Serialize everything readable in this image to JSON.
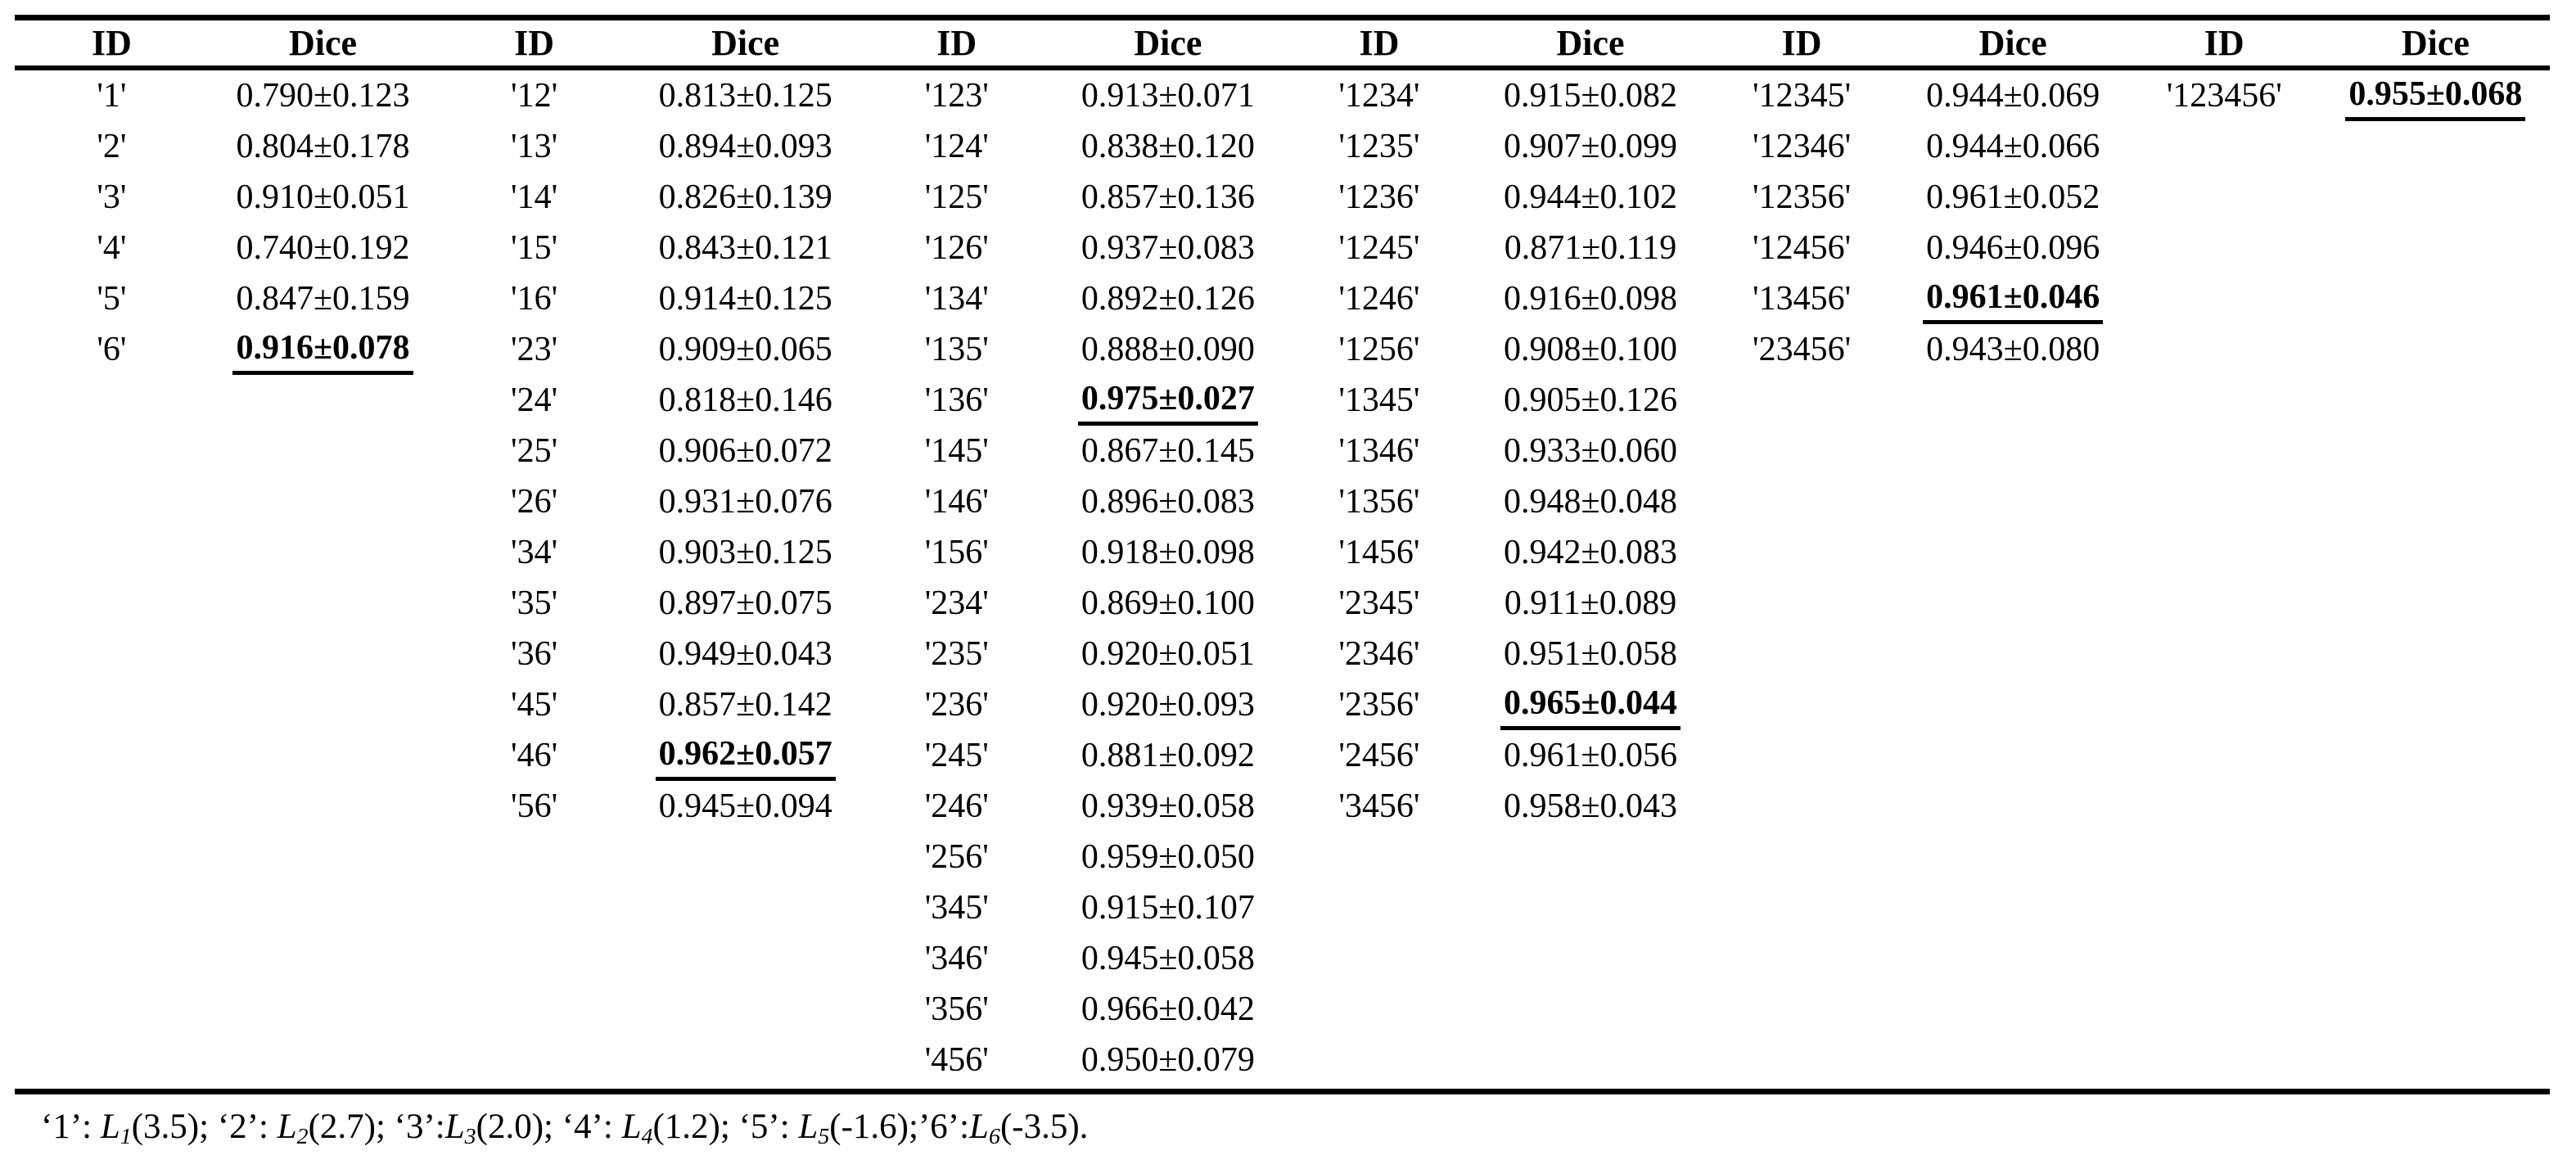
{
  "table": {
    "header": {
      "id_label": "ID",
      "dice_label": "Dice"
    },
    "column_groups": [
      {
        "rows": [
          {
            "id": "'1'",
            "dice": "0.790±0.123",
            "best": false
          },
          {
            "id": "'2'",
            "dice": "0.804±0.178",
            "best": false
          },
          {
            "id": "'3'",
            "dice": "0.910±0.051",
            "best": false
          },
          {
            "id": "'4'",
            "dice": "0.740±0.192",
            "best": false
          },
          {
            "id": "'5'",
            "dice": "0.847±0.159",
            "best": false
          },
          {
            "id": "'6'",
            "dice": "0.916±0.078",
            "best": true
          }
        ]
      },
      {
        "rows": [
          {
            "id": "'12'",
            "dice": "0.813±0.125",
            "best": false
          },
          {
            "id": "'13'",
            "dice": "0.894±0.093",
            "best": false
          },
          {
            "id": "'14'",
            "dice": "0.826±0.139",
            "best": false
          },
          {
            "id": "'15'",
            "dice": "0.843±0.121",
            "best": false
          },
          {
            "id": "'16'",
            "dice": "0.914±0.125",
            "best": false
          },
          {
            "id": "'23'",
            "dice": "0.909±0.065",
            "best": false
          },
          {
            "id": "'24'",
            "dice": "0.818±0.146",
            "best": false
          },
          {
            "id": "'25'",
            "dice": "0.906±0.072",
            "best": false
          },
          {
            "id": "'26'",
            "dice": "0.931±0.076",
            "best": false
          },
          {
            "id": "'34'",
            "dice": "0.903±0.125",
            "best": false
          },
          {
            "id": "'35'",
            "dice": "0.897±0.075",
            "best": false
          },
          {
            "id": "'36'",
            "dice": "0.949±0.043",
            "best": false
          },
          {
            "id": "'45'",
            "dice": "0.857±0.142",
            "best": false
          },
          {
            "id": "'46'",
            "dice": "0.962±0.057",
            "best": true
          },
          {
            "id": "'56'",
            "dice": "0.945±0.094",
            "best": false
          }
        ]
      },
      {
        "rows": [
          {
            "id": "'123'",
            "dice": "0.913±0.071",
            "best": false
          },
          {
            "id": "'124'",
            "dice": "0.838±0.120",
            "best": false
          },
          {
            "id": "'125'",
            "dice": "0.857±0.136",
            "best": false
          },
          {
            "id": "'126'",
            "dice": "0.937±0.083",
            "best": false
          },
          {
            "id": "'134'",
            "dice": "0.892±0.126",
            "best": false
          },
          {
            "id": "'135'",
            "dice": "0.888±0.090",
            "best": false
          },
          {
            "id": "'136'",
            "dice": "0.975±0.027",
            "best": true
          },
          {
            "id": "'145'",
            "dice": "0.867±0.145",
            "best": false
          },
          {
            "id": "'146'",
            "dice": "0.896±0.083",
            "best": false
          },
          {
            "id": "'156'",
            "dice": "0.918±0.098",
            "best": false
          },
          {
            "id": "'234'",
            "dice": "0.869±0.100",
            "best": false
          },
          {
            "id": "'235'",
            "dice": "0.920±0.051",
            "best": false
          },
          {
            "id": "'236'",
            "dice": "0.920±0.093",
            "best": false
          },
          {
            "id": "'245'",
            "dice": "0.881±0.092",
            "best": false
          },
          {
            "id": "'246'",
            "dice": "0.939±0.058",
            "best": false
          },
          {
            "id": "'256'",
            "dice": "0.959±0.050",
            "best": false
          },
          {
            "id": "'345'",
            "dice": "0.915±0.107",
            "best": false
          },
          {
            "id": "'346'",
            "dice": "0.945±0.058",
            "best": false
          },
          {
            "id": "'356'",
            "dice": "0.966±0.042",
            "best": false
          },
          {
            "id": "'456'",
            "dice": "0.950±0.079",
            "best": false
          }
        ]
      },
      {
        "rows": [
          {
            "id": "'1234'",
            "dice": "0.915±0.082",
            "best": false
          },
          {
            "id": "'1235'",
            "dice": "0.907±0.099",
            "best": false
          },
          {
            "id": "'1236'",
            "dice": "0.944±0.102",
            "best": false
          },
          {
            "id": "'1245'",
            "dice": "0.871±0.119",
            "best": false
          },
          {
            "id": "'1246'",
            "dice": "0.916±0.098",
            "best": false
          },
          {
            "id": "'1256'",
            "dice": "0.908±0.100",
            "best": false
          },
          {
            "id": "'1345'",
            "dice": "0.905±0.126",
            "best": false
          },
          {
            "id": "'1346'",
            "dice": "0.933±0.060",
            "best": false
          },
          {
            "id": "'1356'",
            "dice": "0.948±0.048",
            "best": false
          },
          {
            "id": "'1456'",
            "dice": "0.942±0.083",
            "best": false
          },
          {
            "id": "'2345'",
            "dice": "0.911±0.089",
            "best": false
          },
          {
            "id": "'2346'",
            "dice": "0.951±0.058",
            "best": false
          },
          {
            "id": "'2356'",
            "dice": "0.965±0.044",
            "best": true
          },
          {
            "id": "'2456'",
            "dice": "0.961±0.056",
            "best": false
          },
          {
            "id": "'3456'",
            "dice": "0.958±0.043",
            "best": false
          }
        ]
      },
      {
        "rows": [
          {
            "id": "'12345'",
            "dice": "0.944±0.069",
            "best": false
          },
          {
            "id": "'12346'",
            "dice": "0.944±0.066",
            "best": false
          },
          {
            "id": "'12356'",
            "dice": "0.961±0.052",
            "best": false
          },
          {
            "id": "'12456'",
            "dice": "0.946±0.096",
            "best": false
          },
          {
            "id": "'13456'",
            "dice": "0.961±0.046",
            "best": true
          },
          {
            "id": "'23456'",
            "dice": "0.943±0.080",
            "best": false
          }
        ]
      },
      {
        "rows": [
          {
            "id": "'123456'",
            "dice": "0.955±0.068",
            "best": true
          }
        ]
      }
    ],
    "footnote_segments": [
      {
        "t": "‘1’: "
      },
      {
        "t": "L",
        "i": true
      },
      {
        "t": "1",
        "i": true,
        "sub": true
      },
      {
        "t": "(3.5); "
      },
      {
        "t": "‘2’: "
      },
      {
        "t": "L",
        "i": true
      },
      {
        "t": "2",
        "i": true,
        "sub": true
      },
      {
        "t": "(2.7); "
      },
      {
        "t": "‘3’:"
      },
      {
        "t": "L",
        "i": true
      },
      {
        "t": "3",
        "i": true,
        "sub": true
      },
      {
        "t": "(2.0); "
      },
      {
        "t": "‘4’: "
      },
      {
        "t": "L",
        "i": true
      },
      {
        "t": "4",
        "i": true,
        "sub": true
      },
      {
        "t": "(1.2); "
      },
      {
        "t": "‘5’: "
      },
      {
        "t": "L",
        "i": true
      },
      {
        "t": "5",
        "i": true,
        "sub": true
      },
      {
        "t": "(-1.6);"
      },
      {
        "t": "’6’:"
      },
      {
        "t": "L",
        "i": true
      },
      {
        "t": "6",
        "i": true,
        "sub": true
      },
      {
        "t": "(-3.5)."
      }
    ]
  }
}
